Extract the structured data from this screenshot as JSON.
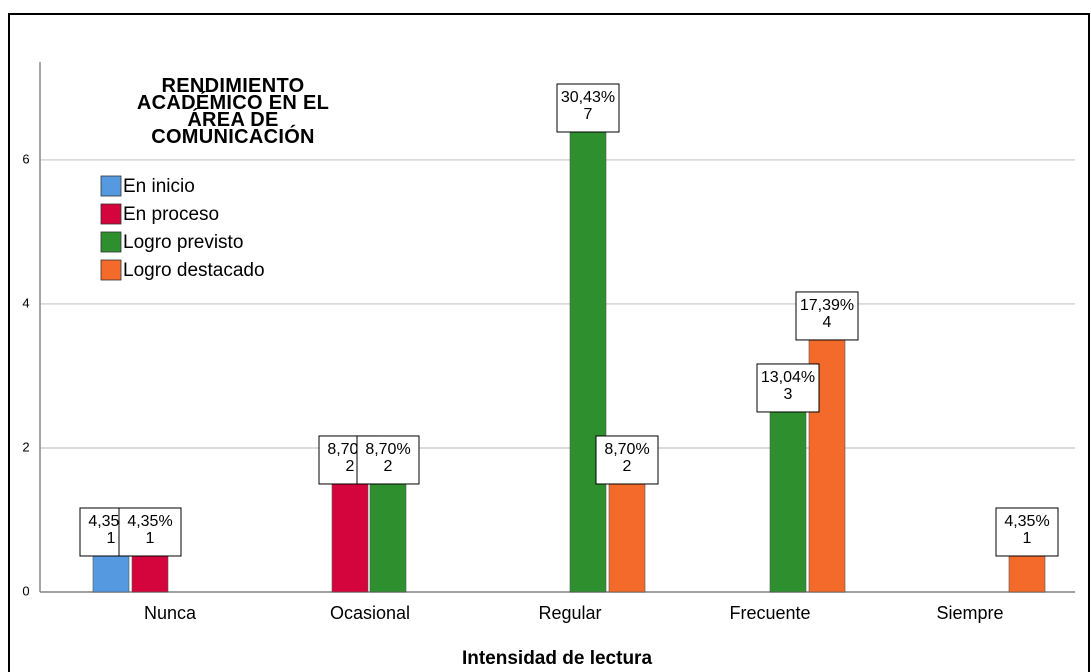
{
  "chart_data": {
    "type": "bar",
    "x_label": "Intensidad de lectura",
    "legend_title": "RENDIMIENTO ACADÉMICO EN EL ÁREA DE COMUNICACIÓN",
    "categories": [
      "Nunca",
      "Ocasional",
      "Regular",
      "Frecuente",
      "Siempre"
    ],
    "series": [
      {
        "name": "En inicio",
        "color": "#559ae0",
        "values": [
          1,
          null,
          null,
          null,
          null
        ],
        "percent_labels": [
          "4,35%",
          null,
          null,
          null,
          null
        ]
      },
      {
        "name": "En proceso",
        "color": "#d4053c",
        "values": [
          1,
          2,
          null,
          null,
          null
        ],
        "percent_labels": [
          "4,35%",
          "8,70%",
          null,
          null,
          null
        ]
      },
      {
        "name": "Logro previsto",
        "color": "#2e8f2e",
        "values": [
          null,
          2,
          7,
          3,
          null
        ],
        "percent_labels": [
          null,
          "8,70%",
          "30,43%",
          "13,04%",
          null
        ]
      },
      {
        "name": "Logro destacado",
        "color": "#f36a2a",
        "values": [
          null,
          null,
          2,
          4,
          1
        ],
        "percent_labels": [
          null,
          null,
          "8,70%",
          "17,39%",
          "4,35%"
        ]
      }
    ],
    "ylim": [
      0,
      7.36
    ],
    "yticks": [
      0,
      2,
      4,
      6
    ],
    "grid": true,
    "legend": "upper left"
  }
}
